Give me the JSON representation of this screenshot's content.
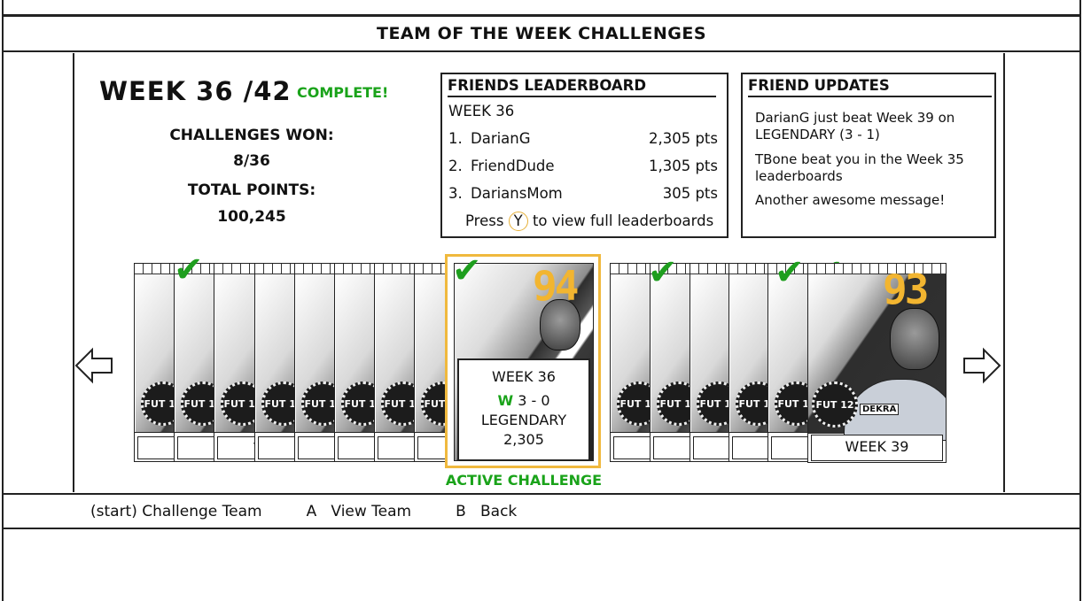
{
  "header": {
    "title": "TEAM OF THE WEEK CHALLENGES"
  },
  "summary": {
    "week": "WEEK 36 /42",
    "status": "COMPLETE!",
    "challenges_won_label": "CHALLENGES WON:",
    "challenges_won_value": "8/36",
    "total_points_label": "TOTAL POINTS:",
    "total_points_value": "100,245"
  },
  "leaderboard": {
    "title": "FRIENDS LEADERBOARD",
    "subtitle": "WEEK 36",
    "entries": [
      {
        "rank": "1.",
        "name": "DarianG",
        "points": "2,305 pts"
      },
      {
        "rank": "2.",
        "name": "FriendDude",
        "points": "1,305 pts"
      },
      {
        "rank": "3.",
        "name": "DariansMom",
        "points": "305 pts"
      }
    ],
    "press_before": "Press",
    "press_button": "Y",
    "press_after": "to view full leaderboards"
  },
  "updates": {
    "title": "FRIEND UPDATES",
    "messages": [
      "DarianG just beat Week 39 on LEGENDARY (3 - 1)",
      "TBone beat you in the Week 35 leaderboards",
      "Another awesome message!"
    ]
  },
  "cards": {
    "badge_text": "FUT 12",
    "label_partial": "V",
    "active": {
      "rating": "94",
      "week": "WEEK 36",
      "result_letter": "W",
      "score": "3 - 0",
      "difficulty": "LEGENDARY",
      "points": "2,305",
      "caption": "ACTIVE CHALLENGE"
    },
    "last": {
      "rating": "93",
      "week": "WEEK 39",
      "sponsor": "DEKRA"
    }
  },
  "footer": {
    "start": "(start) Challenge Team",
    "a": "A   View Team",
    "b": "B   Back"
  },
  "colors": {
    "accent_green": "#1aa31a",
    "highlight_gold": "#f0b93e"
  }
}
